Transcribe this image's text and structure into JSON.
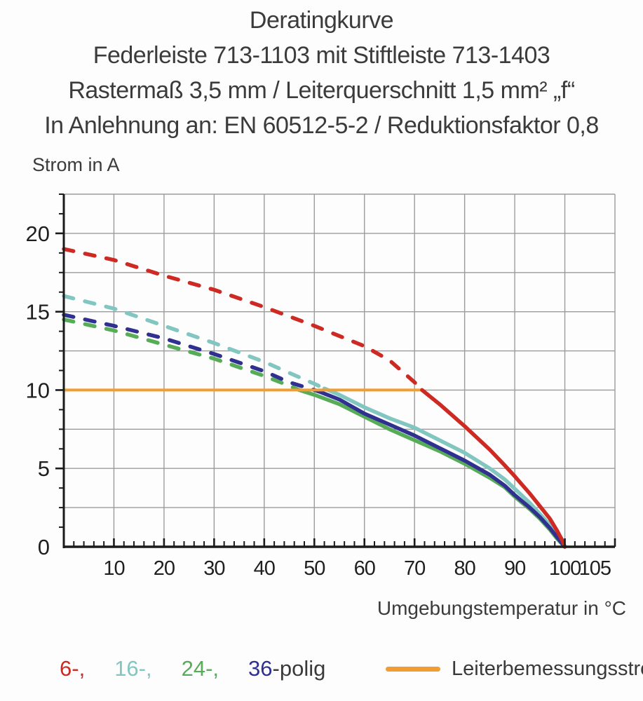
{
  "titles": {
    "line1": "Deratingkurve",
    "line2": "Federleiste 713-1103 mit Stiftleiste 713-1403",
    "line3": "Rastermaß 3,5 mm / Leiterquerschnitt 1,5 mm² „f“",
    "line4": "In Anlehnung an: EN 60512-5-2 / Reduktionsfaktor 0,8"
  },
  "colors": {
    "red_6polig": "#cd2a24",
    "cyan_16polig": "#82c6c2",
    "green_24polig": "#57ac58",
    "navy_36polig": "#2f3090",
    "orange_reference": "#f19d31",
    "grid": "#9b9b9b",
    "axis": "#1b1b1b",
    "tick_label": "#1f1f1f",
    "text": "#3b3b3b"
  },
  "legend": {
    "pole_items": [
      {
        "label": "6-,",
        "color": "#cd2a24"
      },
      {
        "label": "16-,",
        "color": "#82c6c2"
      },
      {
        "label": "24-,",
        "color": "#57ac58"
      },
      {
        "label": "36",
        "color": "#2f3090",
        "suffix": "-polig",
        "suffix_color": "#3a3a3a"
      }
    ],
    "line_item": {
      "label": "Leiterbemessungsstrom",
      "color": "#f19d31"
    }
  },
  "chart_data": {
    "type": "line",
    "title": "Deratingkurve",
    "xlabel": "Umgebungstemperatur in °C",
    "ylabel": "Strom in A",
    "xlim": [
      0,
      110
    ],
    "ylim": [
      0,
      22.5
    ],
    "grid": true,
    "x_gridline_step": 10,
    "y_gridline_step": 2.5,
    "x_major_ticks": [
      10,
      20,
      30,
      40,
      50,
      60,
      70,
      80,
      90,
      100,
      105
    ],
    "x_minor_tick_step": 2,
    "y_major_ticks": [
      0,
      5,
      10,
      15,
      20
    ],
    "y_minor_tick_step": 1.25,
    "legend_position": "bottom",
    "reference_line": {
      "name": "Leiterbemessungsstrom",
      "color": "#f19d31",
      "value_A": 10,
      "points": [
        [
          0,
          10
        ],
        [
          71.5,
          10
        ]
      ]
    },
    "draw_order": [
      "24-polig",
      "16-polig",
      "36-polig",
      "reference",
      "6-polig"
    ],
    "series": [
      {
        "name": "24-polig",
        "color": "#57ac58",
        "points_dashed": [
          [
            0,
            14.5
          ],
          [
            10,
            13.8
          ],
          [
            20,
            12.9
          ],
          [
            30,
            12.0
          ],
          [
            40,
            10.9
          ],
          [
            44,
            10.4
          ],
          [
            47,
            10.0
          ]
        ],
        "points_solid": [
          [
            47,
            10.0
          ],
          [
            50,
            9.7
          ],
          [
            55,
            9.1
          ],
          [
            60,
            8.3
          ],
          [
            65,
            7.5
          ],
          [
            70,
            6.8
          ],
          [
            75,
            6.1
          ],
          [
            80,
            5.3
          ],
          [
            85,
            4.4
          ],
          [
            88,
            3.8
          ],
          [
            90,
            3.2
          ],
          [
            93,
            2.4
          ],
          [
            95,
            1.8
          ],
          [
            97,
            1.1
          ],
          [
            98.5,
            0.5
          ],
          [
            100,
            0
          ]
        ]
      },
      {
        "name": "16-polig",
        "color": "#82c6c2",
        "points_dashed": [
          [
            0,
            16.0
          ],
          [
            10,
            15.2
          ],
          [
            20,
            14.1
          ],
          [
            30,
            13.0
          ],
          [
            40,
            11.8
          ],
          [
            45,
            11.1
          ],
          [
            50,
            10.4
          ],
          [
            52,
            10.1
          ]
        ],
        "points_solid": [
          [
            52,
            10.1
          ],
          [
            55,
            9.7
          ],
          [
            60,
            8.9
          ],
          [
            65,
            8.2
          ],
          [
            70,
            7.6
          ],
          [
            75,
            6.8
          ],
          [
            80,
            6.0
          ],
          [
            85,
            5.0
          ],
          [
            88,
            4.3
          ],
          [
            90,
            3.7
          ],
          [
            93,
            2.8
          ],
          [
            95,
            2.1
          ],
          [
            97,
            1.4
          ],
          [
            98.5,
            0.7
          ],
          [
            100,
            0
          ]
        ]
      },
      {
        "name": "36-polig",
        "color": "#2f3090",
        "points_dashed": [
          [
            0,
            14.8
          ],
          [
            10,
            14.1
          ],
          [
            20,
            13.3
          ],
          [
            30,
            12.3
          ],
          [
            40,
            11.2
          ],
          [
            45,
            10.5
          ],
          [
            50,
            10.0
          ],
          [
            51,
            9.9
          ]
        ],
        "points_solid": [
          [
            51,
            9.9
          ],
          [
            55,
            9.4
          ],
          [
            60,
            8.5
          ],
          [
            65,
            7.8
          ],
          [
            70,
            7.1
          ],
          [
            75,
            6.3
          ],
          [
            80,
            5.5
          ],
          [
            85,
            4.6
          ],
          [
            88,
            3.9
          ],
          [
            90,
            3.3
          ],
          [
            93,
            2.5
          ],
          [
            95,
            1.9
          ],
          [
            97,
            1.2
          ],
          [
            98.5,
            0.6
          ],
          [
            100,
            0
          ]
        ]
      },
      {
        "name": "6-polig",
        "color": "#cd2a24",
        "points_dashed": [
          [
            0,
            19.0
          ],
          [
            10,
            18.3
          ],
          [
            20,
            17.3
          ],
          [
            30,
            16.4
          ],
          [
            40,
            15.3
          ],
          [
            50,
            14.1
          ],
          [
            60,
            12.8
          ],
          [
            65,
            11.9
          ],
          [
            70,
            10.5
          ],
          [
            71.5,
            10.0
          ]
        ],
        "points_solid": [
          [
            71.5,
            10.0
          ],
          [
            75,
            9.1
          ],
          [
            80,
            7.7
          ],
          [
            85,
            6.2
          ],
          [
            88,
            5.2
          ],
          [
            90,
            4.5
          ],
          [
            93,
            3.4
          ],
          [
            95,
            2.6
          ],
          [
            97,
            1.8
          ],
          [
            98.5,
            1.0
          ],
          [
            99.5,
            0.4
          ],
          [
            100,
            0
          ]
        ]
      }
    ]
  }
}
